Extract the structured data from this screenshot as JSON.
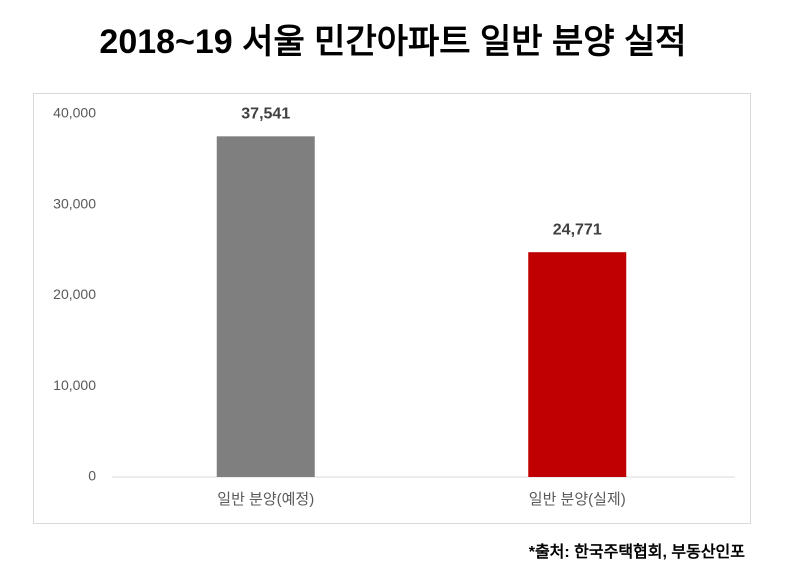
{
  "chart_data": {
    "type": "bar",
    "title": "2018~19 서울 민간아파트 일반 분양 실적",
    "categories": [
      "일반 분양(예정)",
      "일반 분양(실제)"
    ],
    "values": [
      37541,
      24771
    ],
    "value_labels": [
      "37,541",
      "24,771"
    ],
    "colors": [
      "#7f7f7f",
      "#c00000"
    ],
    "ylim": [
      0,
      40000
    ],
    "yticks": [
      0,
      {
        "value": 10000,
        "label": "10,000"
      },
      {
        "value": 20000,
        "label": "20,000"
      },
      {
        "value": 30000,
        "label": "30,000"
      },
      {
        "value": 40000,
        "label": "40,000"
      }
    ],
    "grid": false,
    "source": "*출처: 한국주택협회, 부동산인포"
  }
}
